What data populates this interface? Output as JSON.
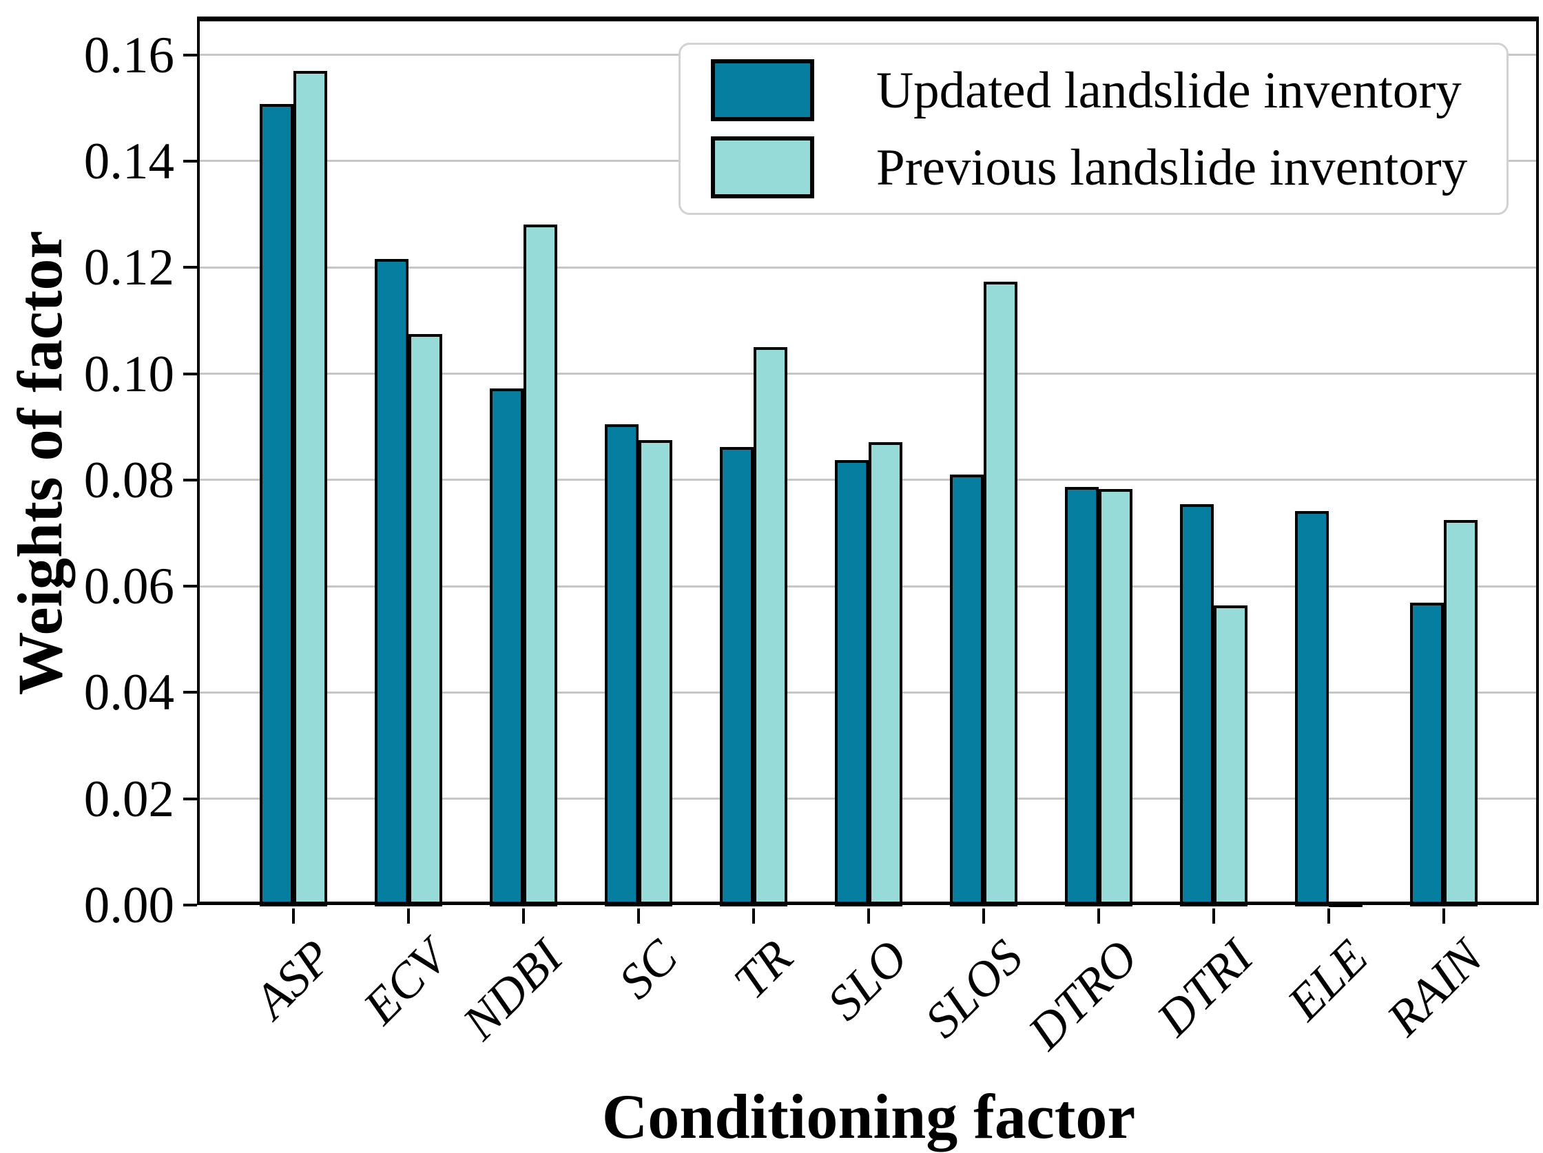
{
  "chart_data": {
    "type": "bar",
    "title": "",
    "xlabel": "Conditioning factor",
    "ylabel": "Weights of factor",
    "categories": [
      "ASP",
      "ECV",
      "NDBI",
      "SC",
      "TR",
      "SLO",
      "SLOS",
      "DTRO",
      "DTRI",
      "ELE",
      "RAIN"
    ],
    "series": [
      {
        "name": "Updated landslide inventory",
        "color": "#057EA0",
        "values": [
          0.151,
          0.1218,
          0.0975,
          0.0908,
          0.0864,
          0.084,
          0.0813,
          0.079,
          0.0757,
          0.0744,
          0.0572
        ]
      },
      {
        "name": "Previous landslide inventory",
        "color": "#97DBD8",
        "values": [
          0.1573,
          0.1077,
          0.1283,
          0.0878,
          0.1052,
          0.0874,
          0.1176,
          0.0786,
          0.0566,
          0.0002,
          0.0727
        ]
      }
    ],
    "ylim": [
      0,
      0.1667
    ],
    "yticks": [
      "0.00",
      "0.02",
      "0.04",
      "0.06",
      "0.08",
      "0.10",
      "0.12",
      "0.14",
      "0.16"
    ],
    "ytick_values": [
      0,
      0.02,
      0.04,
      0.06,
      0.08,
      0.1,
      0.12,
      0.14,
      0.16
    ],
    "grid": "horizontal",
    "grid_color": "#c6c6c6",
    "bar_edge_color": "#000000",
    "legend_position": "upper right",
    "xtick_rotation": 45
  }
}
